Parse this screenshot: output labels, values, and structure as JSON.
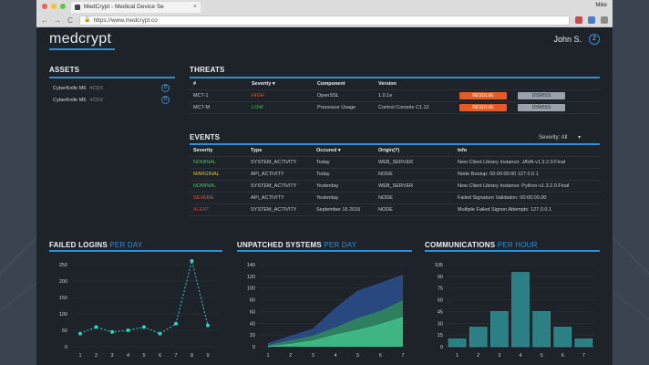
{
  "browser": {
    "tab_title": "MedCrypt - Medical Device Se",
    "tab_close": "×",
    "url": "https://www.medcrypt.co",
    "user_tag": "Mike",
    "back": "←",
    "forward": "→",
    "reload": "C",
    "lock": "🔒"
  },
  "header": {
    "logo": "medcrypt",
    "user_name": "John S.",
    "notification_count": "2"
  },
  "assets": {
    "title": "ASSETS",
    "items": [
      {
        "name": "CyberKnife M6",
        "tag": "#CDX",
        "badge": "0"
      },
      {
        "name": "CyberKnife M6",
        "tag": "#CDX",
        "badge": "0"
      }
    ]
  },
  "threats": {
    "title": "THREATS",
    "columns": [
      "#",
      "Severity ▾",
      "Component",
      "Version"
    ],
    "rows": [
      {
        "id": "MCT-1",
        "severity": "HIGH",
        "severity_color": "#e8542a",
        "component": "OpenSSL",
        "version": "1.0.1e",
        "resolve": "RESOLVE",
        "dismiss": "DISMISS"
      },
      {
        "id": "MCT-M",
        "severity": "LOW",
        "severity_color": "#44c25a",
        "component": "Processor Usage",
        "version": "Control Console C1.12",
        "resolve": "RESOLVE",
        "dismiss": "DISMISS"
      }
    ]
  },
  "events": {
    "title": "EVENTS",
    "filter_label": "Severity: All",
    "filter_caret": "▾",
    "columns": [
      "Severity",
      "Type",
      "Occured ▾",
      "Origin(?)",
      "Info"
    ],
    "rows": [
      {
        "severity": "NOMINAL",
        "color": "#44c25a",
        "type": "SYSTEM_ACTIVITY",
        "occured": "Today",
        "origin": "WEB_SERVER",
        "info": "New Client Library Instance: JAVA-v1.3.2.0.Final"
      },
      {
        "severity": "MARGINAL",
        "color": "#e6c62a",
        "type": "API_ACTIVITY",
        "occured": "Today",
        "origin": "NODE",
        "info": "Node Bootup: 00:00:00:00 127.0.0.1"
      },
      {
        "severity": "NOMINAL",
        "color": "#44c25a",
        "type": "SYSTEM_ACTIVITY",
        "occured": "Yesterday",
        "origin": "WEB_SERVER",
        "info": "New Client Library Instance: Python-v1.3.2.0.Final"
      },
      {
        "severity": "SEVERE",
        "color": "#e8542a",
        "type": "API_ACTIVITY",
        "occured": "Yesterday",
        "origin": "NODE",
        "info": "Failed Signature Validation: 00:00:00.00"
      },
      {
        "severity": "ALERT",
        "color": "#e03535",
        "type": "SYSTEM_ACTIVITY",
        "occured": "September 16 2016",
        "origin": "NODE",
        "info": "Multiple Failed Signon Attempts: 127.0.0.1"
      }
    ]
  },
  "chart_titles": [
    {
      "main": "FAILED LOGINS",
      "suffix": "PER DAY"
    },
    {
      "main": "UNPATCHED SYSTEMS",
      "suffix": "PER DAY"
    },
    {
      "main": "COMMUNICATIONS",
      "suffix": "PER HOUR"
    }
  ],
  "chart_data": [
    {
      "type": "line",
      "x": [
        1,
        2,
        3,
        4,
        5,
        6,
        7,
        8,
        9
      ],
      "values": [
        40,
        60,
        45,
        50,
        60,
        40,
        70,
        300,
        65
      ],
      "ylim": [
        0,
        250
      ],
      "yticks": [
        0,
        50,
        100,
        150,
        200,
        250
      ],
      "color": "#2fd3c3",
      "grid": true
    },
    {
      "type": "area",
      "x": [
        1,
        2,
        3,
        4,
        5,
        6,
        7
      ],
      "ylim": [
        0,
        140
      ],
      "yticks": [
        0,
        20,
        40,
        60,
        80,
        100,
        120,
        140
      ],
      "series": [
        {
          "values": [
            5,
            18,
            30,
            65,
            95,
            108,
            122
          ],
          "color": "#2b4f8e"
        },
        {
          "values": [
            2,
            10,
            18,
            32,
            48,
            60,
            78
          ],
          "color": "#2f8a5a"
        },
        {
          "values": [
            0,
            4,
            10,
            20,
            28,
            38,
            50
          ],
          "color": "#3fbf8a"
        }
      ],
      "grid": true
    },
    {
      "type": "bar",
      "categories": [
        1,
        2,
        3,
        4,
        5,
        6,
        7
      ],
      "values": [
        10,
        25,
        45,
        95,
        45,
        25,
        10
      ],
      "ylim": [
        0,
        105
      ],
      "yticks": [
        0,
        15,
        30,
        45,
        60,
        75,
        90,
        105
      ],
      "color": "#2c7f82",
      "grid": true
    }
  ]
}
